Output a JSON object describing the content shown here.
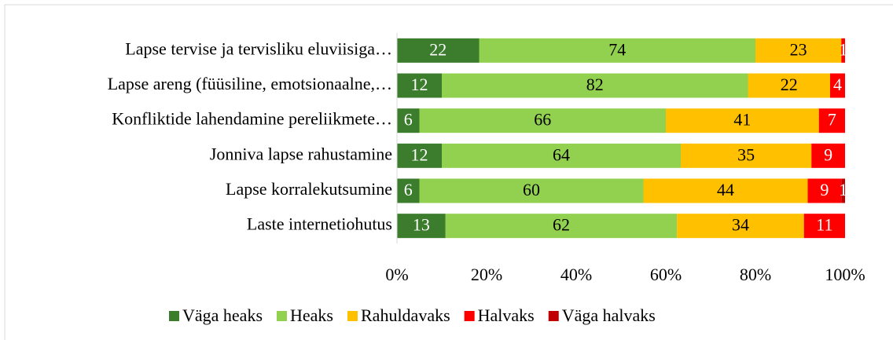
{
  "chart_data": {
    "type": "bar",
    "orientation": "horizontal",
    "stacking": "percent",
    "categories": [
      "Lapse tervise ja tervisliku eluviisiga…",
      "Lapse areng (füüsiline, emotsionaalne,…",
      "Konfliktide lahendamine pereliikmete…",
      "Jonniva lapse rahustamine",
      "Lapse korralekutsumine",
      "Laste internetiohutus"
    ],
    "series": [
      {
        "name": "Väga heaks",
        "color": "#3b7d2c",
        "label_color": "#ffffff",
        "values": [
          22,
          12,
          6,
          12,
          6,
          13
        ]
      },
      {
        "name": "Heaks",
        "color": "#92d050",
        "label_color": "#000000",
        "values": [
          74,
          82,
          66,
          64,
          60,
          62
        ]
      },
      {
        "name": "Rahuldavaks",
        "color": "#ffc000",
        "label_color": "#000000",
        "values": [
          23,
          22,
          41,
          35,
          44,
          34
        ]
      },
      {
        "name": "Halvaks",
        "color": "#ff0000",
        "label_color": "#ffffff",
        "values": [
          1,
          4,
          7,
          9,
          9,
          11
        ]
      },
      {
        "name": "Väga halvaks",
        "color": "#c00000",
        "label_color": "#ffffff",
        "values": [
          null,
          null,
          null,
          null,
          1,
          null
        ]
      }
    ],
    "xlim": [
      0,
      100
    ],
    "xticks": [
      {
        "value": 0,
        "label": "0%"
      },
      {
        "value": 20,
        "label": "20%"
      },
      {
        "value": 40,
        "label": "40%"
      },
      {
        "value": 60,
        "label": "60%"
      },
      {
        "value": 80,
        "label": "80%"
      },
      {
        "value": 100,
        "label": "100%"
      }
    ],
    "legend": "bottom"
  }
}
